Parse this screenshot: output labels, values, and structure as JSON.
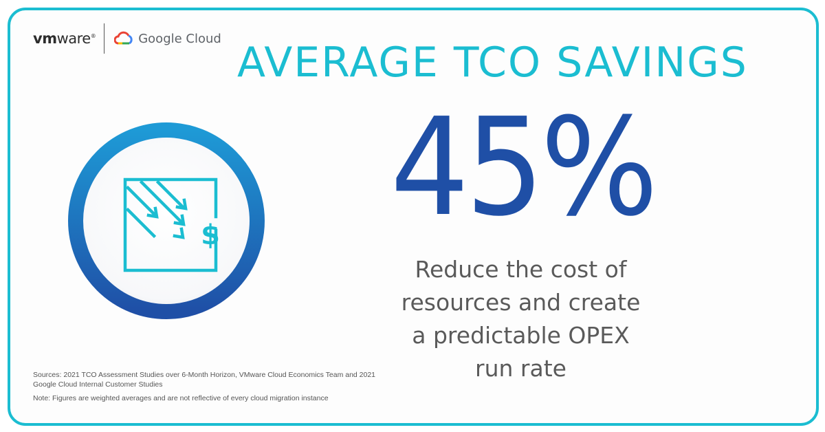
{
  "brand": {
    "vmware_bold": "vm",
    "vmware_rest": "ware",
    "google_cloud": "Google Cloud"
  },
  "headline": "AVERAGE TCO SAVINGS",
  "stat": "45%",
  "description_lines": [
    "Reduce the cost of",
    "resources and create",
    "a predictable OPEX",
    "run rate"
  ],
  "sources": "Sources: 2021 TCO Assessment Studies over 6-Month Horizon, VMware Cloud Economics Team and 2021 Google Cloud Internal Customer Studies",
  "note": "Note: Figures are weighted averages and are not reflective of every cloud migration instance",
  "icon": {
    "name": "cost-reduction-icon",
    "currency_symbol": "$"
  },
  "colors": {
    "frame": "#1bbdd1",
    "headline": "#1bbdd1",
    "stat": "#1f4fa6",
    "body_text": "#5a5a5a",
    "circle_gradient_start": "#1e9ad6",
    "circle_gradient_end": "#1f4fa6"
  }
}
